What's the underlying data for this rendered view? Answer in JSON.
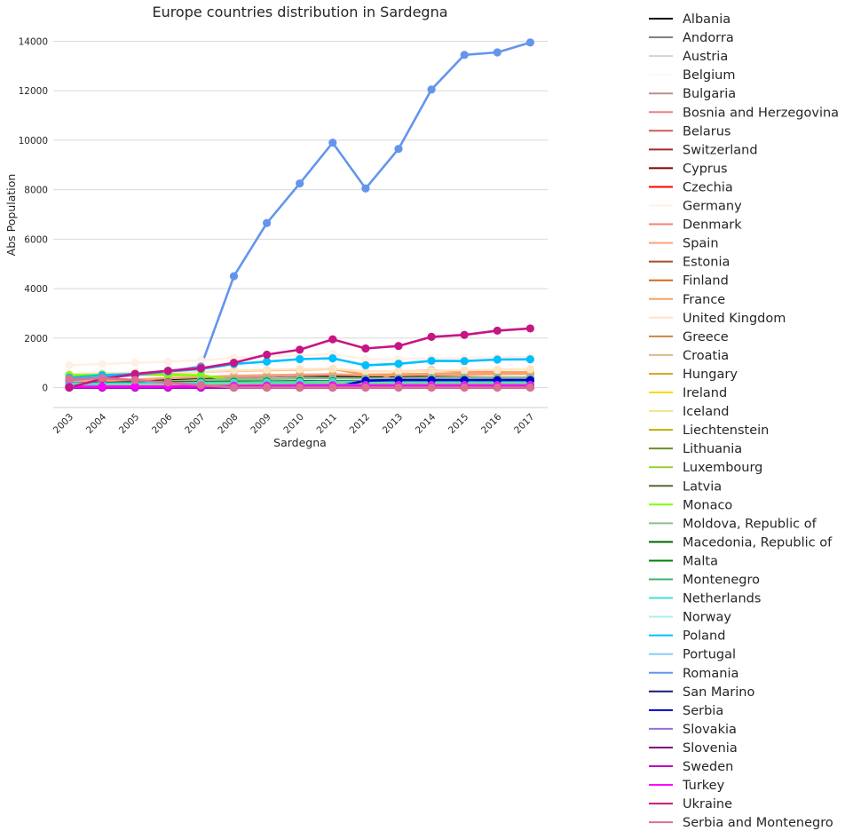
{
  "chart_data": {
    "type": "line",
    "title": "Europe countries distribution in Sardegna",
    "xlabel": "Sardegna",
    "ylabel": "Abs Population",
    "categories": [
      "2003",
      "2004",
      "2005",
      "2006",
      "2007",
      "2008",
      "2009",
      "2010",
      "2011",
      "2012",
      "2013",
      "2014",
      "2015",
      "2016",
      "2017"
    ],
    "y_ticks": [
      0,
      2000,
      4000,
      6000,
      8000,
      10000,
      12000,
      14000
    ],
    "ylim": [
      -800,
      14700
    ],
    "grid": "horizontal",
    "legend_position": "right",
    "series": [
      {
        "name": "Albania",
        "color": "#000000",
        "values": [
          200,
          250,
          280,
          330,
          380,
          400,
          450,
          480,
          470,
          420,
          420,
          420,
          410,
          400,
          400
        ]
      },
      {
        "name": "Andorra",
        "color": "#808080",
        "values": [
          0,
          0,
          0,
          0,
          0,
          0,
          0,
          0,
          0,
          0,
          0,
          0,
          0,
          0,
          0
        ]
      },
      {
        "name": "Austria",
        "color": "#d3d3d3",
        "values": [
          80,
          85,
          90,
          90,
          95,
          100,
          100,
          105,
          110,
          100,
          100,
          100,
          100,
          100,
          100
        ]
      },
      {
        "name": "Belgium",
        "color": "#f8f8f8",
        "values": [
          60,
          60,
          65,
          70,
          70,
          75,
          75,
          80,
          80,
          75,
          75,
          75,
          75,
          75,
          75
        ]
      },
      {
        "name": "Bulgaria",
        "color": "#bc8f8f",
        "values": [
          20,
          40,
          70,
          120,
          250,
          400,
          450,
          500,
          520,
          500,
          520,
          530,
          540,
          550,
          560
        ]
      },
      {
        "name": "Bosnia and Herzegovina",
        "color": "#f08080",
        "values": [
          60,
          65,
          70,
          70,
          75,
          75,
          75,
          80,
          80,
          75,
          75,
          75,
          75,
          75,
          75
        ]
      },
      {
        "name": "Belarus",
        "color": "#cd5c5c",
        "values": [
          60,
          70,
          80,
          90,
          100,
          100,
          110,
          110,
          120,
          110,
          110,
          110,
          110,
          110,
          110
        ]
      },
      {
        "name": "Switzerland",
        "color": "#a52a2a",
        "values": [
          200,
          210,
          220,
          230,
          230,
          240,
          240,
          250,
          250,
          240,
          240,
          240,
          240,
          240,
          240
        ]
      },
      {
        "name": "Cyprus",
        "color": "#800000",
        "values": [
          10,
          10,
          10,
          10,
          10,
          10,
          10,
          10,
          10,
          10,
          10,
          10,
          10,
          10,
          10
        ]
      },
      {
        "name": "Czechia",
        "color": "#ff0000",
        "values": [
          40,
          45,
          50,
          55,
          60,
          70,
          75,
          80,
          85,
          80,
          80,
          80,
          80,
          80,
          80
        ]
      },
      {
        "name": "Germany",
        "color": "#fff0e6",
        "values": [
          900,
          950,
          1000,
          1050,
          1100,
          1200,
          1250,
          1300,
          1350,
          1150,
          1150,
          1180,
          1200,
          1220,
          1230
        ]
      },
      {
        "name": "Denmark",
        "color": "#fa8072",
        "values": [
          50,
          55,
          60,
          60,
          65,
          70,
          70,
          75,
          75,
          70,
          650,
          700,
          650,
          620,
          600
        ]
      },
      {
        "name": "Spain",
        "color": "#ffa07a",
        "values": [
          250,
          280,
          320,
          380,
          420,
          470,
          500,
          520,
          530,
          500,
          500,
          520,
          530,
          540,
          550
        ]
      },
      {
        "name": "Estonia",
        "color": "#a0522d",
        "values": [
          30,
          35,
          40,
          45,
          50,
          55,
          60,
          65,
          65,
          60,
          60,
          60,
          60,
          60,
          60
        ]
      },
      {
        "name": "Finland",
        "color": "#d2691e",
        "values": [
          60,
          65,
          70,
          70,
          75,
          80,
          80,
          85,
          85,
          80,
          80,
          80,
          80,
          80,
          80
        ]
      },
      {
        "name": "France",
        "color": "#f4a460",
        "values": [
          500,
          530,
          560,
          600,
          640,
          680,
          700,
          720,
          750,
          520,
          540,
          560,
          580,
          600,
          620
        ]
      },
      {
        "name": "United Kingdom",
        "color": "#ffe4c4",
        "values": [
          550,
          580,
          600,
          620,
          650,
          700,
          720,
          740,
          760,
          650,
          660,
          680,
          700,
          720,
          740
        ]
      },
      {
        "name": "Greece",
        "color": "#cd853f",
        "values": [
          100,
          110,
          120,
          130,
          140,
          150,
          160,
          170,
          180,
          170,
          170,
          170,
          170,
          170,
          170
        ]
      },
      {
        "name": "Croatia",
        "color": "#deb887",
        "values": [
          80,
          90,
          100,
          110,
          120,
          130,
          140,
          150,
          160,
          150,
          150,
          150,
          150,
          150,
          150
        ]
      },
      {
        "name": "Hungary",
        "color": "#daa520",
        "values": [
          60,
          70,
          80,
          90,
          110,
          140,
          160,
          180,
          190,
          190,
          200,
          210,
          220,
          230,
          240
        ]
      },
      {
        "name": "Ireland",
        "color": "#ffd700",
        "values": [
          100,
          110,
          120,
          130,
          140,
          150,
          160,
          170,
          180,
          170,
          170,
          180,
          180,
          190,
          190
        ]
      },
      {
        "name": "Iceland",
        "color": "#f0e68c",
        "values": [
          10,
          10,
          10,
          10,
          10,
          10,
          10,
          10,
          10,
          10,
          10,
          10,
          10,
          10,
          10
        ]
      },
      {
        "name": "Liechtenstein",
        "color": "#bdb000",
        "values": [
          5,
          5,
          5,
          5,
          5,
          5,
          5,
          5,
          5,
          5,
          5,
          5,
          5,
          5,
          5
        ]
      },
      {
        "name": "Lithuania",
        "color": "#6b8e23",
        "values": [
          30,
          40,
          50,
          60,
          70,
          80,
          90,
          100,
          110,
          100,
          100,
          100,
          100,
          100,
          100
        ]
      },
      {
        "name": "Luxembourg",
        "color": "#9acd32",
        "values": [
          10,
          10,
          10,
          10,
          10,
          10,
          10,
          10,
          10,
          10,
          10,
          10,
          10,
          10,
          10
        ]
      },
      {
        "name": "Latvia",
        "color": "#556b2f",
        "values": [
          20,
          25,
          30,
          35,
          40,
          45,
          50,
          55,
          60,
          55,
          55,
          55,
          55,
          55,
          55
        ]
      },
      {
        "name": "Monaco",
        "color": "#7fff00",
        "values": [
          500,
          520,
          520,
          510,
          500,
          300,
          200,
          150,
          100,
          80,
          80,
          80,
          80,
          80,
          80
        ]
      },
      {
        "name": "Moldova, Republic of",
        "color": "#8fbc8f",
        "values": [
          100,
          150,
          200,
          250,
          300,
          330,
          350,
          370,
          380,
          370,
          380,
          390,
          400,
          400,
          400
        ]
      },
      {
        "name": "Macedonia, Republic of",
        "color": "#006400",
        "values": [
          150,
          180,
          200,
          210,
          220,
          230,
          240,
          250,
          250,
          240,
          240,
          240,
          240,
          240,
          240
        ]
      },
      {
        "name": "Malta",
        "color": "#008000",
        "values": [
          20,
          20,
          20,
          20,
          20,
          20,
          20,
          20,
          20,
          20,
          20,
          20,
          20,
          20,
          20
        ]
      },
      {
        "name": "Montenegro",
        "color": "#3cb371",
        "values": [
          20,
          25,
          30,
          35,
          40,
          45,
          50,
          55,
          60,
          55,
          55,
          55,
          55,
          55,
          55
        ]
      },
      {
        "name": "Netherlands",
        "color": "#40e0d0",
        "values": [
          150,
          160,
          170,
          180,
          190,
          200,
          210,
          220,
          230,
          220,
          220,
          220,
          220,
          220,
          220
        ]
      },
      {
        "name": "Norway",
        "color": "#afeeee",
        "values": [
          30,
          35,
          40,
          45,
          50,
          55,
          60,
          65,
          70,
          65,
          65,
          65,
          65,
          65,
          65
        ]
      },
      {
        "name": "Poland",
        "color": "#00bfff",
        "values": [
          400,
          500,
          550,
          650,
          750,
          950,
          1050,
          1150,
          1180,
          900,
          960,
          1080,
          1070,
          1130,
          1140
        ]
      },
      {
        "name": "Portugal",
        "color": "#87cefa",
        "values": [
          50,
          55,
          60,
          65,
          70,
          75,
          80,
          85,
          90,
          85,
          85,
          85,
          85,
          85,
          85
        ]
      },
      {
        "name": "Romania",
        "color": "#6495ed",
        "values": [
          300,
          400,
          500,
          650,
          850,
          4500,
          6650,
          8250,
          9900,
          8050,
          9650,
          12050,
          13450,
          13550,
          13950
        ]
      },
      {
        "name": "San Marino",
        "color": "#191970",
        "values": [
          5,
          5,
          5,
          5,
          5,
          5,
          5,
          5,
          5,
          5,
          5,
          5,
          5,
          5,
          5
        ]
      },
      {
        "name": "Serbia",
        "color": "#0000cd",
        "values": [
          0,
          0,
          0,
          0,
          0,
          0,
          0,
          0,
          0,
          280,
          300,
          300,
          300,
          300,
          300
        ]
      },
      {
        "name": "Slovakia",
        "color": "#9370db",
        "values": [
          20,
          30,
          40,
          50,
          60,
          80,
          90,
          100,
          110,
          100,
          100,
          100,
          100,
          100,
          100
        ]
      },
      {
        "name": "Slovenia",
        "color": "#800080",
        "values": [
          20,
          25,
          30,
          35,
          40,
          45,
          50,
          55,
          60,
          55,
          55,
          55,
          55,
          55,
          55
        ]
      },
      {
        "name": "Sweden",
        "color": "#c000c0",
        "values": [
          5,
          5,
          5,
          5,
          5,
          5,
          5,
          5,
          5,
          5,
          5,
          5,
          5,
          5,
          5
        ]
      },
      {
        "name": "Turkey",
        "color": "#ff00ff",
        "values": [
          30,
          35,
          40,
          45,
          50,
          55,
          60,
          65,
          70,
          65,
          65,
          65,
          65,
          65,
          65
        ]
      },
      {
        "name": "Ukraine",
        "color": "#c71585",
        "values": [
          0,
          350,
          550,
          680,
          780,
          1000,
          1330,
          1530,
          1950,
          1580,
          1680,
          2050,
          2130,
          2300,
          2390
        ]
      },
      {
        "name": "Serbia and Montenegro",
        "color": "#db7093",
        "values": [
          350,
          380,
          300,
          200,
          100,
          0,
          0,
          0,
          0,
          0,
          0,
          0,
          0,
          0,
          0
        ]
      }
    ]
  }
}
